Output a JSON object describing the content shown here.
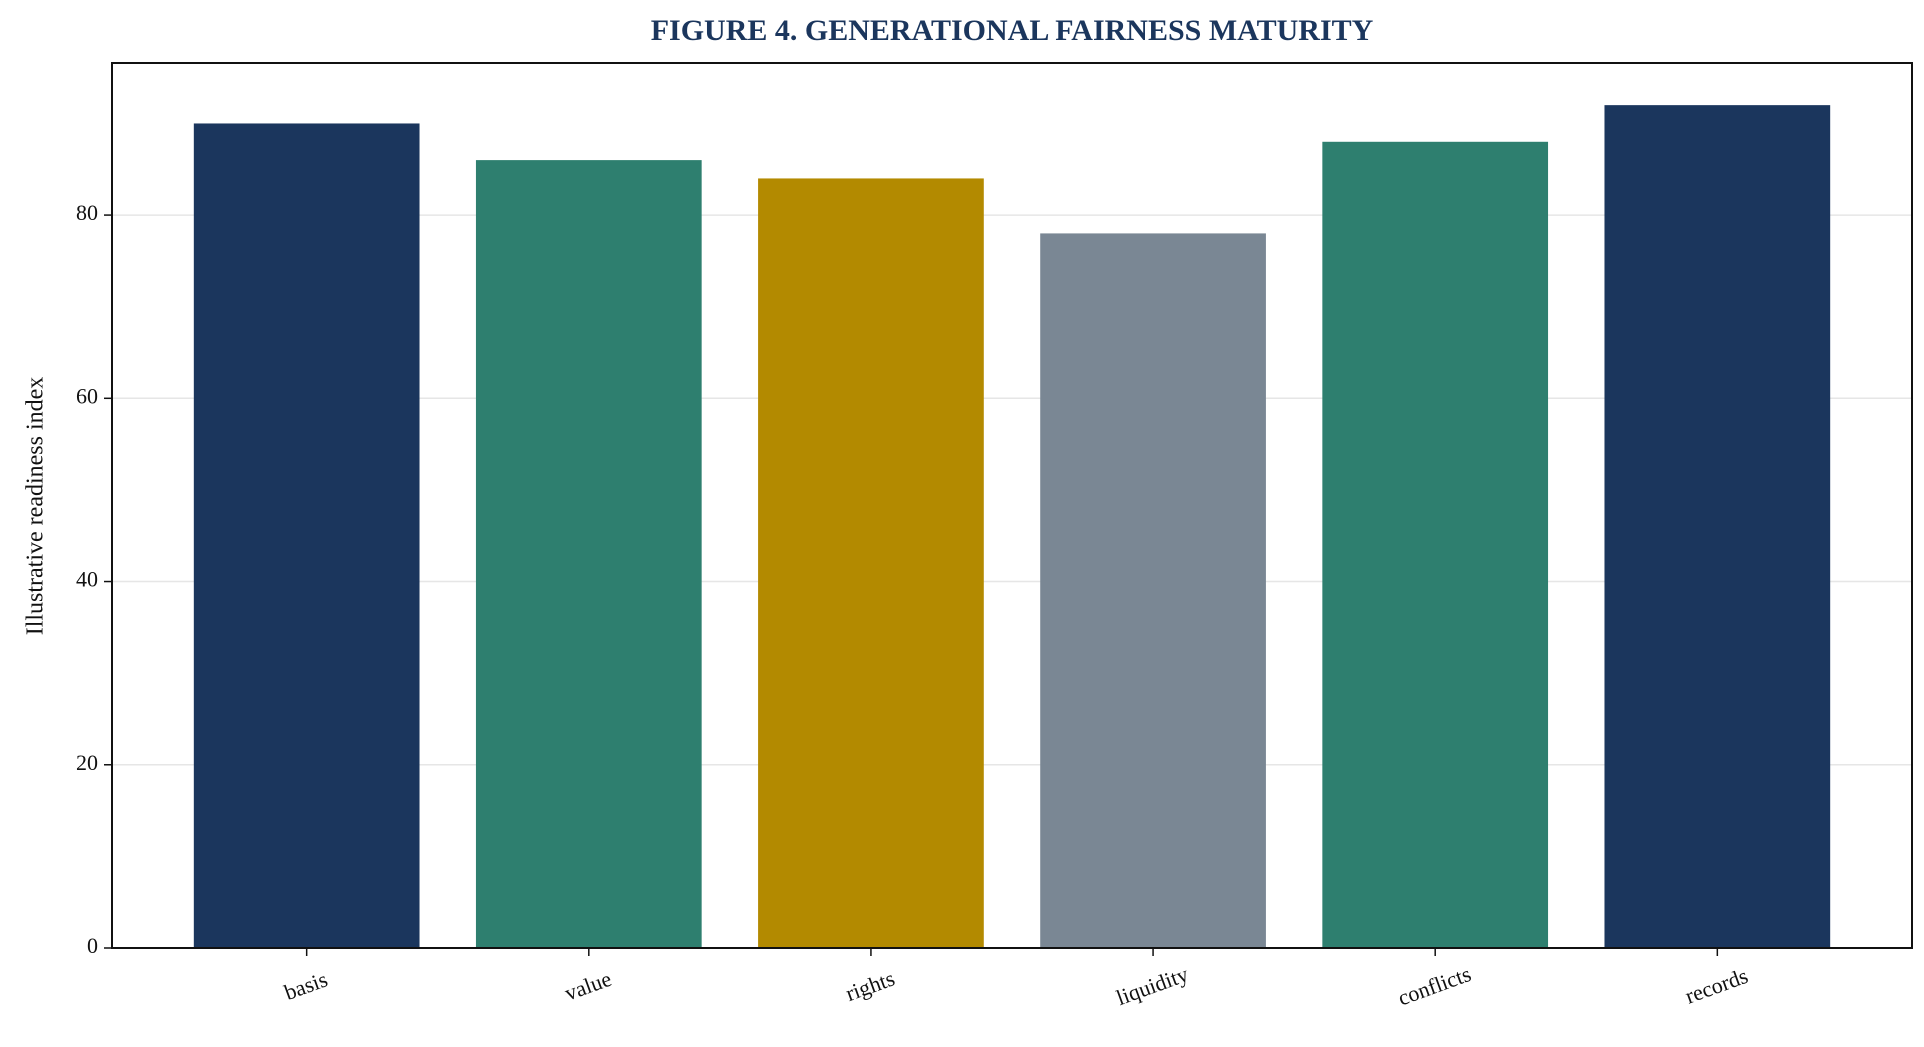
{
  "chart_data": {
    "type": "bar",
    "title": "FIGURE 4. GENERATIONAL FAIRNESS MATURITY",
    "ylabel": "Illustrative readiness index",
    "categories": [
      "basis",
      "value",
      "rights",
      "liquidity",
      "conflicts",
      "records"
    ],
    "values": [
      90,
      86,
      84,
      78,
      88,
      92
    ],
    "colors": [
      "#1b365d",
      "#2e7f6f",
      "#b38a00",
      "#7a8794",
      "#2e7f6f",
      "#1b365d"
    ],
    "ylim": [
      0,
      96.6
    ],
    "yticks": [
      0,
      20,
      40,
      60,
      80
    ],
    "grid": true
  }
}
